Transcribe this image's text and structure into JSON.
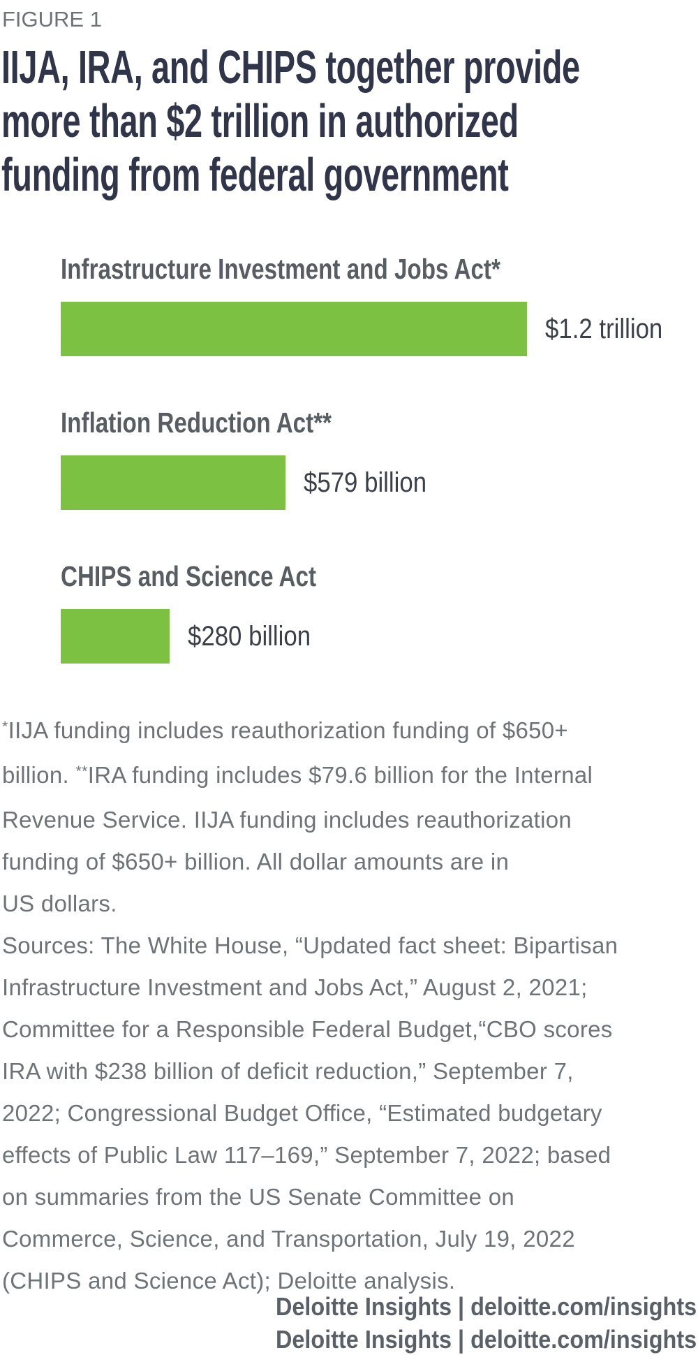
{
  "figure_label": "FIGURE 1",
  "title_lines": [
    "IIJA, IRA, and CHIPS together provide",
    "more than $2 trillion in authorized",
    "funding from federal government"
  ],
  "chart_data": {
    "type": "bar",
    "orientation": "horizontal",
    "title": "IIJA, IRA, and CHIPS together provide more than $2 trillion in authorized funding from federal government",
    "categories": [
      "Infrastructure Investment and Jobs Act*",
      "Inflation Reduction Act**",
      "CHIPS and Science Act"
    ],
    "values": [
      1200,
      579,
      280
    ],
    "value_labels": [
      "$1.2 trillion",
      "$579 billion",
      "$280 billion"
    ],
    "unit": "billions of US dollars",
    "xlim": [
      0,
      1200
    ],
    "grid": false,
    "legend": "none",
    "bar_color": "#7dc142"
  },
  "footnote_lines": [
    [
      {
        "sup": true,
        "t": "*"
      },
      {
        "sup": false,
        "t": "IIJA funding includes reauthorization funding of $650+"
      }
    ],
    [
      {
        "sup": false,
        "t": "billion. "
      },
      {
        "sup": true,
        "t": "**"
      },
      {
        "sup": false,
        "t": "IRA funding includes $79.6 billion for the Internal"
      }
    ],
    [
      {
        "sup": false,
        "t": "Revenue Service. IIJA funding includes reauthorization"
      }
    ],
    [
      {
        "sup": false,
        "t": "funding of $650+ billion. All dollar amounts are in"
      }
    ],
    [
      {
        "sup": false,
        "t": "US dollars."
      }
    ]
  ],
  "sources_lines": [
    "Sources: The White House, “Updated fact sheet: Bipartisan",
    "Infrastructure Investment and Jobs Act,” August 2, 2021;",
    "Committee for a Responsible Federal Budget,“CBO scores",
    "IRA with $238 billion of deficit reduction,” September 7,",
    "2022; Congressional Budget Office, “Estimated budgetary",
    "effects of Public Law 117–169,” September 7, 2022; based",
    "on summaries from the US Senate Committee on",
    "Commerce, Science, and Transportation, July 19, 2022",
    "(CHIPS and Science Act); Deloitte analysis."
  ],
  "attribution": "Deloitte Insights | deloitte.com/insights",
  "colors": {
    "bar_green": "#7dc142",
    "title_text": "#30354a",
    "figure_label_text": "#6d7278",
    "category_label_text": "#585d63",
    "value_text": "#3a3f4a",
    "note_text": "#6e7378",
    "attribution_text": "#596068"
  }
}
